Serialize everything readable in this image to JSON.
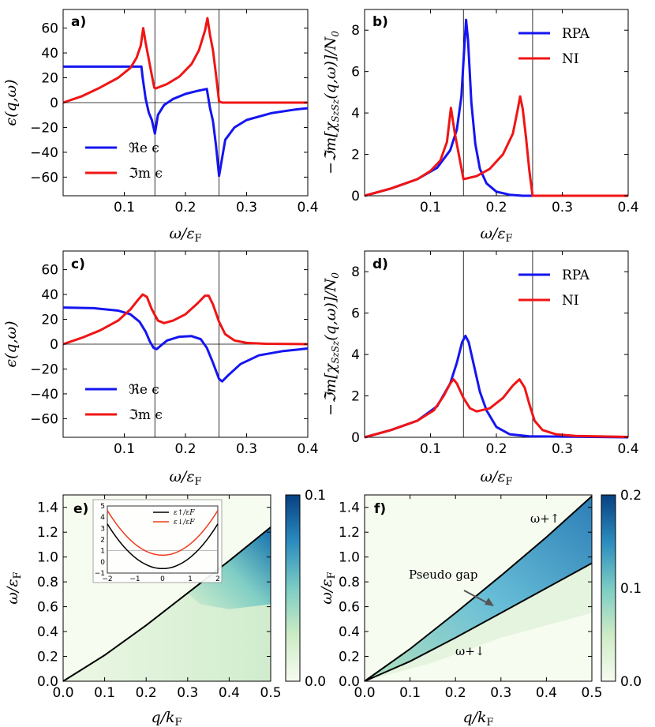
{
  "chart_data": [
    {
      "id": "a",
      "type": "line",
      "panel_label": "a)",
      "xlabel": "ω/ε_F",
      "ylabel": "ε(q,ω)",
      "xlim": [
        0,
        0.4
      ],
      "ylim": [
        -75,
        75
      ],
      "xticks": [
        "0.1",
        "0.2",
        "0.3",
        "0.4"
      ],
      "yticks": [
        "60",
        "40",
        "20",
        "0",
        "−20",
        "−40",
        "−60"
      ],
      "vlines": [
        0.15,
        0.255
      ],
      "hline": 0,
      "legend": [
        "ℜe ϵ",
        "ℑm ϵ"
      ],
      "legend_position": "lower-left",
      "series": [
        {
          "name": "ℜe ϵ",
          "color": "#1515f0",
          "points": [
            [
              0,
              29
            ],
            [
              0.12,
              29
            ],
            [
              0.128,
              29
            ],
            [
              0.13,
              20
            ],
            [
              0.135,
              3
            ],
            [
              0.14,
              -8
            ],
            [
              0.145,
              -14
            ],
            [
              0.15,
              -25
            ],
            [
              0.155,
              -10
            ],
            [
              0.165,
              -2
            ],
            [
              0.18,
              3
            ],
            [
              0.2,
              7
            ],
            [
              0.22,
              9.5
            ],
            [
              0.235,
              11
            ],
            [
              0.24,
              -4
            ],
            [
              0.245,
              -15
            ],
            [
              0.25,
              -35
            ],
            [
              0.255,
              -59
            ],
            [
              0.265,
              -30
            ],
            [
              0.28,
              -20
            ],
            [
              0.3,
              -14
            ],
            [
              0.34,
              -8.5
            ],
            [
              0.38,
              -5.5
            ],
            [
              0.4,
              -4.5
            ]
          ]
        },
        {
          "name": "ℑm ϵ",
          "color": "#f01515",
          "points": [
            [
              0,
              0
            ],
            [
              0.03,
              5
            ],
            [
              0.06,
              12
            ],
            [
              0.09,
              20
            ],
            [
              0.11,
              28
            ],
            [
              0.12,
              36
            ],
            [
              0.127,
              46
            ],
            [
              0.131,
              60
            ],
            [
              0.135,
              48
            ],
            [
              0.14,
              35
            ],
            [
              0.145,
              22
            ],
            [
              0.149,
              12
            ],
            [
              0.152,
              11.5
            ],
            [
              0.17,
              15
            ],
            [
              0.19,
              21
            ],
            [
              0.21,
              31
            ],
            [
              0.222,
              42
            ],
            [
              0.232,
              58
            ],
            [
              0.236,
              68
            ],
            [
              0.24,
              55
            ],
            [
              0.245,
              42
            ],
            [
              0.25,
              22
            ],
            [
              0.255,
              1
            ],
            [
              0.26,
              0
            ],
            [
              0.4,
              0
            ]
          ]
        }
      ]
    },
    {
      "id": "b",
      "type": "line",
      "panel_label": "b)",
      "xlabel": "ω/ε_F",
      "ylabel": "−ℑm[χ_{S_zS_z}(q,ω)]/N_0",
      "xlim": [
        0,
        0.4
      ],
      "ylim": [
        0,
        9
      ],
      "xticks": [
        "0.1",
        "0.2",
        "0.3",
        "0.4"
      ],
      "yticks": [
        "8",
        "6",
        "4",
        "2",
        "0"
      ],
      "vlines": [
        0.15,
        0.255
      ],
      "legend": [
        "RPA",
        "NI"
      ],
      "legend_position": "top-right",
      "series": [
        {
          "name": "RPA",
          "color": "#1515f0",
          "points": [
            [
              0,
              0
            ],
            [
              0.04,
              0.35
            ],
            [
              0.08,
              0.8
            ],
            [
              0.11,
              1.35
            ],
            [
              0.13,
              2.2
            ],
            [
              0.14,
              3.2
            ],
            [
              0.147,
              4.8
            ],
            [
              0.151,
              7
            ],
            [
              0.154,
              8.5
            ],
            [
              0.157,
              7.5
            ],
            [
              0.162,
              4.5
            ],
            [
              0.168,
              2.5
            ],
            [
              0.175,
              1.3
            ],
            [
              0.185,
              0.6
            ],
            [
              0.2,
              0.2
            ],
            [
              0.22,
              0.05
            ],
            [
              0.24,
              0
            ],
            [
              0.4,
              0
            ]
          ]
        },
        {
          "name": "NI",
          "color": "#f01515",
          "points": [
            [
              0,
              0
            ],
            [
              0.04,
              0.35
            ],
            [
              0.08,
              0.8
            ],
            [
              0.1,
              1.2
            ],
            [
              0.115,
              1.7
            ],
            [
              0.125,
              2.6
            ],
            [
              0.131,
              4.25
            ],
            [
              0.137,
              3
            ],
            [
              0.143,
              2
            ],
            [
              0.15,
              0.8
            ],
            [
              0.17,
              0.95
            ],
            [
              0.19,
              1.3
            ],
            [
              0.21,
              2
            ],
            [
              0.225,
              3
            ],
            [
              0.232,
              4.1
            ],
            [
              0.236,
              4.8
            ],
            [
              0.24,
              4.2
            ],
            [
              0.245,
              2.8
            ],
            [
              0.25,
              1.2
            ],
            [
              0.255,
              0
            ],
            [
              0.4,
              0
            ]
          ]
        }
      ]
    },
    {
      "id": "c",
      "type": "line",
      "panel_label": "c)",
      "xlabel": "ω/ε_F",
      "ylabel": "ϵ(q,ω)",
      "xlim": [
        0,
        0.4
      ],
      "ylim": [
        -75,
        75
      ],
      "xticks": [
        "0.1",
        "0.2",
        "0.3",
        "0.4"
      ],
      "yticks": [
        "60",
        "40",
        "20",
        "0",
        "−20",
        "−40",
        "−60"
      ],
      "vlines": [
        0.15,
        0.255
      ],
      "hline": 0,
      "legend": [
        "ℜe ϵ",
        "ℑm ϵ"
      ],
      "legend_position": "lower-left",
      "series": [
        {
          "name": "ℜe ϵ",
          "color": "#1515f0",
          "points": [
            [
              0,
              29.5
            ],
            [
              0.05,
              29
            ],
            [
              0.09,
              27
            ],
            [
              0.11,
              24
            ],
            [
              0.125,
              18
            ],
            [
              0.135,
              10
            ],
            [
              0.142,
              2
            ],
            [
              0.148,
              -3
            ],
            [
              0.153,
              -4
            ],
            [
              0.16,
              -1
            ],
            [
              0.17,
              3
            ],
            [
              0.19,
              6
            ],
            [
              0.21,
              6.5
            ],
            [
              0.225,
              4
            ],
            [
              0.235,
              -3
            ],
            [
              0.245,
              -15
            ],
            [
              0.255,
              -28
            ],
            [
              0.26,
              -30
            ],
            [
              0.27,
              -25
            ],
            [
              0.29,
              -16
            ],
            [
              0.32,
              -9
            ],
            [
              0.36,
              -5.5
            ],
            [
              0.4,
              -3.5
            ]
          ]
        },
        {
          "name": "ℑm ϵ",
          "color": "#f01515",
          "points": [
            [
              0,
              0
            ],
            [
              0.03,
              5
            ],
            [
              0.06,
              11
            ],
            [
              0.09,
              19
            ],
            [
              0.11,
              28
            ],
            [
              0.123,
              36
            ],
            [
              0.13,
              40
            ],
            [
              0.137,
              38
            ],
            [
              0.145,
              28
            ],
            [
              0.155,
              19
            ],
            [
              0.165,
              17
            ],
            [
              0.18,
              19
            ],
            [
              0.2,
              24
            ],
            [
              0.22,
              33
            ],
            [
              0.232,
              39
            ],
            [
              0.238,
              39
            ],
            [
              0.245,
              32
            ],
            [
              0.255,
              18
            ],
            [
              0.265,
              8
            ],
            [
              0.28,
              3
            ],
            [
              0.3,
              1
            ],
            [
              0.33,
              0.3
            ],
            [
              0.4,
              0
            ]
          ]
        }
      ]
    },
    {
      "id": "d",
      "type": "line",
      "panel_label": "d)",
      "xlabel": "ω/ε_F",
      "ylabel": "−ℑm[χ_{S_zS_z}(q,ω)]/N_0",
      "xlim": [
        0,
        0.4
      ],
      "ylim": [
        0,
        9
      ],
      "xticks": [
        "0.1",
        "0.2",
        "0.3",
        "0.4"
      ],
      "yticks": [
        "8",
        "6",
        "4",
        "2",
        "0"
      ],
      "vlines": [
        0.15,
        0.255
      ],
      "legend": [
        "RPA",
        "NI"
      ],
      "legend_position": "top-right",
      "series": [
        {
          "name": "RPA",
          "color": "#1515f0",
          "points": [
            [
              0,
              0
            ],
            [
              0.04,
              0.35
            ],
            [
              0.08,
              0.8
            ],
            [
              0.11,
              1.5
            ],
            [
              0.13,
              2.6
            ],
            [
              0.14,
              3.6
            ],
            [
              0.148,
              4.6
            ],
            [
              0.153,
              4.9
            ],
            [
              0.158,
              4.6
            ],
            [
              0.165,
              3.6
            ],
            [
              0.175,
              2.2
            ],
            [
              0.185,
              1.3
            ],
            [
              0.2,
              0.5
            ],
            [
              0.22,
              0.15
            ],
            [
              0.25,
              0.05
            ],
            [
              0.4,
              0
            ]
          ]
        },
        {
          "name": "NI",
          "color": "#f01515",
          "points": [
            [
              0,
              0
            ],
            [
              0.04,
              0.35
            ],
            [
              0.08,
              0.8
            ],
            [
              0.105,
              1.3
            ],
            [
              0.12,
              2
            ],
            [
              0.13,
              2.6
            ],
            [
              0.135,
              2.8
            ],
            [
              0.14,
              2.6
            ],
            [
              0.15,
              1.9
            ],
            [
              0.16,
              1.4
            ],
            [
              0.17,
              1.25
            ],
            [
              0.19,
              1.4
            ],
            [
              0.21,
              1.9
            ],
            [
              0.225,
              2.5
            ],
            [
              0.235,
              2.8
            ],
            [
              0.243,
              2.4
            ],
            [
              0.25,
              1.6
            ],
            [
              0.258,
              0.8
            ],
            [
              0.27,
              0.35
            ],
            [
              0.29,
              0.15
            ],
            [
              0.32,
              0.07
            ],
            [
              0.4,
              0.02
            ]
          ]
        }
      ]
    },
    {
      "id": "e",
      "type": "heatmap",
      "panel_label": "e)",
      "xlabel": "q/k_F",
      "ylabel": "ω/ε_F",
      "xlim": [
        0,
        0.5
      ],
      "ylim": [
        0,
        1.5
      ],
      "xticks": [
        "0.0",
        "0.1",
        "0.2",
        "0.3",
        "0.4",
        "0.5"
      ],
      "yticks": [
        "1.4",
        "1.2",
        "1.0",
        "0.8",
        "0.6",
        "0.4",
        "0.2",
        "0.0"
      ],
      "colorbar": {
        "min": 0.0,
        "max": 0.1,
        "ticks": [
          "0.1",
          "0.0"
        ]
      },
      "boundary_curve": [
        [
          0,
          0
        ],
        [
          0.1,
          0.21
        ],
        [
          0.2,
          0.45
        ],
        [
          0.3,
          0.71
        ],
        [
          0.4,
          0.97
        ],
        [
          0.5,
          1.24
        ]
      ],
      "inset": {
        "xlim": [
          -2,
          2
        ],
        "ylim": [
          -1,
          5
        ],
        "xticks": [
          "−2",
          "−1",
          "0",
          "1",
          "2"
        ],
        "yticks": [
          "5",
          "4",
          "3",
          "2",
          "1",
          "0",
          "−1"
        ],
        "legend": [
          "ε↑/εF",
          "ε↓/εF"
        ],
        "series": [
          {
            "name": "ε↑/εF",
            "color": "#000000",
            "offset": -0.6
          },
          {
            "name": "ε↓/εF",
            "color": "#f03c1e",
            "offset": 0.6
          }
        ]
      }
    },
    {
      "id": "f",
      "type": "heatmap",
      "panel_label": "f)",
      "xlabel": "q/k_F",
      "ylabel": "ω/ε_F",
      "xlim": [
        0,
        0.5
      ],
      "ylim": [
        0,
        1.5
      ],
      "xticks": [
        "0.0",
        "0.1",
        "0.2",
        "0.3",
        "0.4",
        "0.5"
      ],
      "yticks": [
        "1.4",
        "1.2",
        "1.0",
        "0.8",
        "0.6",
        "0.4",
        "0.2",
        "0.0"
      ],
      "colorbar": {
        "min": 0.0,
        "max": 0.2,
        "ticks": [
          "0.2",
          "0.1",
          "0.0"
        ]
      },
      "upper_curve": [
        [
          0,
          0
        ],
        [
          0.1,
          0.26
        ],
        [
          0.2,
          0.55
        ],
        [
          0.3,
          0.85
        ],
        [
          0.4,
          1.16
        ],
        [
          0.5,
          1.49
        ]
      ],
      "lower_curve": [
        [
          0,
          0
        ],
        [
          0.1,
          0.16
        ],
        [
          0.2,
          0.35
        ],
        [
          0.3,
          0.55
        ],
        [
          0.4,
          0.75
        ],
        [
          0.5,
          0.95
        ]
      ],
      "annotations": {
        "upper": "ω+↑",
        "lower": "ω+↓",
        "gap": "Pseudo gap"
      }
    }
  ]
}
